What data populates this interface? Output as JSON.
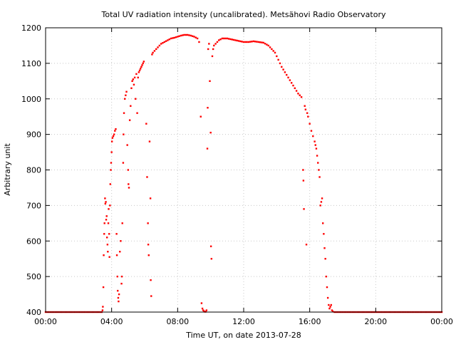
{
  "chart_data": {
    "type": "scatter",
    "title": "Total UV radiation intensity (uncalibrated). Metsähovi Radio Observatory",
    "xlabel": "Time UT, on date 2013-07-28",
    "ylabel": "Arbitrary unit",
    "xlim": [
      0,
      24
    ],
    "ylim": [
      400,
      1200
    ],
    "x_ticks": [
      {
        "value": 0,
        "label": "00:00"
      },
      {
        "value": 4,
        "label": "04:00"
      },
      {
        "value": 8,
        "label": "08:00"
      },
      {
        "value": 12,
        "label": "12:00"
      },
      {
        "value": 16,
        "label": "16:00"
      },
      {
        "value": 20,
        "label": "20:00"
      },
      {
        "value": 24,
        "label": "00:00"
      }
    ],
    "y_ticks": [
      400,
      500,
      600,
      700,
      800,
      900,
      1000,
      1100,
      1200
    ],
    "grid": true,
    "legend": "none",
    "color": "#ff0000",
    "series": [
      {
        "points": [
          [
            0.0,
            400
          ],
          [
            0.5,
            400
          ],
          [
            1.0,
            400
          ],
          [
            1.5,
            400
          ],
          [
            2.0,
            400
          ],
          [
            2.5,
            400
          ],
          [
            3.0,
            400
          ],
          [
            3.4,
            400
          ],
          [
            3.45,
            405
          ],
          [
            3.47,
            415
          ],
          [
            3.5,
            470
          ],
          [
            3.52,
            560
          ],
          [
            3.55,
            620
          ],
          [
            3.57,
            650
          ],
          [
            3.6,
            720
          ],
          [
            3.62,
            705
          ],
          [
            3.65,
            710
          ],
          [
            3.67,
            660
          ],
          [
            3.7,
            670
          ],
          [
            3.72,
            610
          ],
          [
            3.75,
            590
          ],
          [
            3.77,
            570
          ],
          [
            3.8,
            650
          ],
          [
            3.82,
            690
          ],
          [
            3.85,
            620
          ],
          [
            3.87,
            555
          ],
          [
            3.9,
            700
          ],
          [
            3.92,
            760
          ],
          [
            3.95,
            800
          ],
          [
            3.97,
            820
          ],
          [
            4.0,
            850
          ],
          [
            4.02,
            880
          ],
          [
            4.05,
            890
          ],
          [
            4.1,
            895
          ],
          [
            4.15,
            900
          ],
          [
            4.2,
            910
          ],
          [
            4.25,
            915
          ],
          [
            4.3,
            620
          ],
          [
            4.32,
            560
          ],
          [
            4.35,
            500
          ],
          [
            4.37,
            460
          ],
          [
            4.4,
            440
          ],
          [
            4.42,
            430
          ],
          [
            4.45,
            450
          ],
          [
            4.5,
            570
          ],
          [
            4.55,
            600
          ],
          [
            4.6,
            480
          ],
          [
            4.62,
            500
          ],
          [
            4.65,
            650
          ],
          [
            4.7,
            820
          ],
          [
            4.72,
            900
          ],
          [
            4.75,
            960
          ],
          [
            4.8,
            1000
          ],
          [
            4.85,
            1010
          ],
          [
            4.9,
            1020
          ],
          [
            4.95,
            870
          ],
          [
            5.0,
            800
          ],
          [
            5.02,
            760
          ],
          [
            5.05,
            750
          ],
          [
            5.1,
            940
          ],
          [
            5.15,
            980
          ],
          [
            5.2,
            1030
          ],
          [
            5.25,
            1050
          ],
          [
            5.3,
            1055
          ],
          [
            5.35,
            1040
          ],
          [
            5.4,
            1060
          ],
          [
            5.45,
            1000
          ],
          [
            5.5,
            1070
          ],
          [
            5.55,
            960
          ],
          [
            5.6,
            1060
          ],
          [
            5.65,
            1075
          ],
          [
            5.7,
            1080
          ],
          [
            5.75,
            1085
          ],
          [
            5.8,
            1090
          ],
          [
            5.85,
            1095
          ],
          [
            5.9,
            1100
          ],
          [
            5.95,
            1105
          ],
          [
            6.1,
            930
          ],
          [
            6.15,
            780
          ],
          [
            6.2,
            650
          ],
          [
            6.22,
            590
          ],
          [
            6.25,
            560
          ],
          [
            6.3,
            880
          ],
          [
            6.35,
            720
          ],
          [
            6.37,
            490
          ],
          [
            6.4,
            445
          ],
          [
            6.45,
            1125
          ],
          [
            6.5,
            1130
          ],
          [
            6.6,
            1135
          ],
          [
            6.8,
            1145
          ],
          [
            7.0,
            1155
          ],
          [
            7.2,
            1160
          ],
          [
            7.4,
            1165
          ],
          [
            7.6,
            1170
          ],
          [
            7.8,
            1172
          ],
          [
            8.0,
            1175
          ],
          [
            8.2,
            1178
          ],
          [
            8.4,
            1180
          ],
          [
            8.6,
            1180
          ],
          [
            8.8,
            1178
          ],
          [
            9.0,
            1175
          ],
          [
            9.2,
            1170
          ],
          [
            9.3,
            1160
          ],
          [
            9.4,
            950
          ],
          [
            9.45,
            425
          ],
          [
            9.5,
            410
          ],
          [
            9.55,
            405
          ],
          [
            9.6,
            402
          ],
          [
            9.65,
            401
          ],
          [
            9.7,
            401
          ],
          [
            9.75,
            405
          ],
          [
            9.8,
            860
          ],
          [
            9.82,
            975
          ],
          [
            9.85,
            1140
          ],
          [
            9.9,
            1155
          ],
          [
            9.95,
            1050
          ],
          [
            10.0,
            905
          ],
          [
            10.02,
            585
          ],
          [
            10.05,
            550
          ],
          [
            10.1,
            1120
          ],
          [
            10.15,
            1140
          ],
          [
            10.2,
            1150
          ],
          [
            10.3,
            1155
          ],
          [
            10.4,
            1160
          ],
          [
            10.5,
            1165
          ],
          [
            10.7,
            1170
          ],
          [
            11.0,
            1170
          ],
          [
            11.2,
            1168
          ],
          [
            11.5,
            1165
          ],
          [
            11.8,
            1162
          ],
          [
            12.0,
            1160
          ],
          [
            12.3,
            1160
          ],
          [
            12.6,
            1162
          ],
          [
            12.9,
            1160
          ],
          [
            13.2,
            1158
          ],
          [
            13.5,
            1150
          ],
          [
            13.7,
            1140
          ],
          [
            13.9,
            1130
          ],
          [
            14.1,
            1110
          ],
          [
            14.3,
            1090
          ],
          [
            14.5,
            1075
          ],
          [
            14.7,
            1060
          ],
          [
            14.9,
            1045
          ],
          [
            15.1,
            1030
          ],
          [
            15.3,
            1015
          ],
          [
            15.5,
            1005
          ],
          [
            15.6,
            800
          ],
          [
            15.62,
            770
          ],
          [
            15.65,
            690
          ],
          [
            15.7,
            980
          ],
          [
            15.75,
            970
          ],
          [
            15.8,
            590
          ],
          [
            15.85,
            960
          ],
          [
            15.9,
            950
          ],
          [
            16.0,
            930
          ],
          [
            16.1,
            910
          ],
          [
            16.2,
            895
          ],
          [
            16.3,
            880
          ],
          [
            16.35,
            870
          ],
          [
            16.4,
            860
          ],
          [
            16.45,
            840
          ],
          [
            16.5,
            820
          ],
          [
            16.55,
            800
          ],
          [
            16.6,
            780
          ],
          [
            16.65,
            700
          ],
          [
            16.7,
            710
          ],
          [
            16.75,
            720
          ],
          [
            16.8,
            650
          ],
          [
            16.85,
            620
          ],
          [
            16.9,
            580
          ],
          [
            16.95,
            550
          ],
          [
            17.0,
            500
          ],
          [
            17.05,
            470
          ],
          [
            17.1,
            440
          ],
          [
            17.15,
            420
          ],
          [
            17.2,
            410
          ],
          [
            17.25,
            415
          ],
          [
            17.3,
            420
          ],
          [
            17.35,
            405
          ],
          [
            17.4,
            402
          ],
          [
            17.5,
            400
          ],
          [
            18.0,
            400
          ],
          [
            18.5,
            400
          ],
          [
            19.0,
            400
          ],
          [
            19.5,
            400
          ],
          [
            20.0,
            400
          ],
          [
            20.5,
            400
          ],
          [
            21.0,
            400
          ],
          [
            21.5,
            400
          ],
          [
            22.0,
            400
          ],
          [
            22.5,
            400
          ],
          [
            23.0,
            400
          ],
          [
            23.5,
            400
          ],
          [
            24.0,
            400
          ]
        ]
      }
    ]
  }
}
